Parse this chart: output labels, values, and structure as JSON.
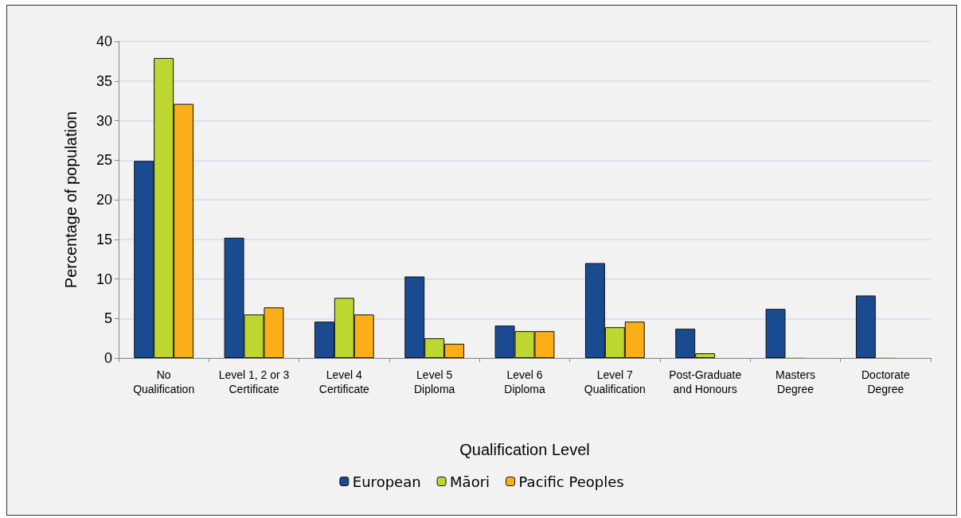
{
  "chart_data": {
    "type": "bar",
    "xlabel": "Qualification Level",
    "ylabel": "Percentage of population",
    "categories": [
      "No\nQualification",
      "Level 1, 2 or 3\nCertificate",
      "Level 4\nCertificate",
      "Level 5\nDiploma",
      "Level 6\nDiploma",
      "Level 7\nQualification",
      "Post-Graduate\nand Honours",
      "Masters\nDegree",
      "Doctorate\nDegree"
    ],
    "series": [
      {
        "name": "European",
        "color": "#1a4a90",
        "values": [
          24.9,
          15.2,
          4.6,
          10.3,
          4.1,
          12.0,
          3.7,
          6.2,
          7.9
        ]
      },
      {
        "name": "Māori",
        "color": "#bed630",
        "values": [
          37.9,
          5.5,
          7.6,
          2.5,
          3.4,
          3.9,
          0.6,
          0.1,
          0.1
        ]
      },
      {
        "name": "Pacific Peoples",
        "color": "#fbae17",
        "values": [
          32.1,
          6.4,
          5.5,
          1.8,
          3.4,
          4.6,
          null,
          null,
          null
        ]
      }
    ],
    "ylim": [
      0,
      40
    ],
    "yticks": [
      0,
      5,
      10,
      15,
      20,
      25,
      30,
      35,
      40
    ],
    "grid": "y",
    "legend": "bottom"
  }
}
